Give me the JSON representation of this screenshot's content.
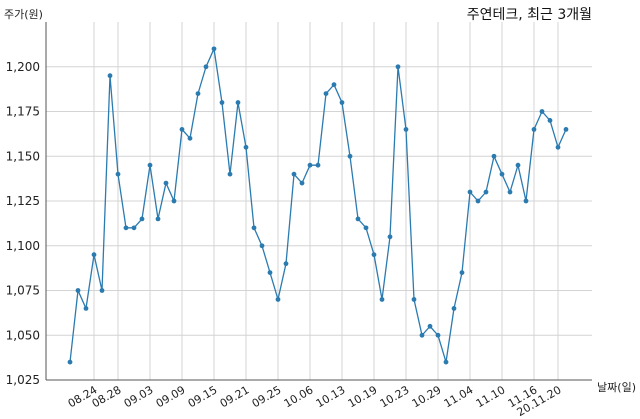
{
  "chart_data": {
    "type": "line",
    "title": "주연테크, 최근 3개월",
    "ylabel": "주가(원)",
    "xlabel": "날짜(일)",
    "ylim": [
      1025,
      1225
    ],
    "yticks": [
      1025,
      1050,
      1075,
      1100,
      1125,
      1150,
      1175,
      1200
    ],
    "ytick_labels": [
      "1,025",
      "1,050",
      "1,075",
      "1,100",
      "1,125",
      "1,150",
      "1,175",
      "1,200"
    ],
    "xtick_labels": [
      "08.24",
      "08.28",
      "09.03",
      "09.09",
      "09.15",
      "09.21",
      "09.25",
      "10.06",
      "10.13",
      "10.19",
      "10.23",
      "10.29",
      "11.04",
      "11.10",
      "11.16",
      "20.11.20"
    ],
    "xtick_index": [
      3,
      6,
      10,
      14,
      18,
      22,
      26,
      30,
      34,
      38,
      42,
      46,
      50,
      54,
      58,
      61
    ],
    "grid": true,
    "line_color": "#2b7bb0",
    "series": [
      {
        "values": [
          1035,
          1075,
          1065,
          1095,
          1075,
          1195,
          1140,
          1110,
          1110,
          1115,
          1145,
          1115,
          1135,
          1125,
          1165,
          1160,
          1185,
          1200,
          1210,
          1180,
          1140,
          1180,
          1155,
          1110,
          1100,
          1085,
          1070,
          1090,
          1140,
          1135,
          1145,
          1145,
          1185,
          1190,
          1180,
          1150,
          1115,
          1110,
          1095,
          1070,
          1105,
          1200,
          1165,
          1070,
          1050,
          1055,
          1050,
          1035,
          1065,
          1085,
          1130,
          1125,
          1130,
          1150,
          1140,
          1130,
          1145,
          1125,
          1165,
          1175,
          1170,
          1155,
          1165
        ]
      }
    ]
  }
}
